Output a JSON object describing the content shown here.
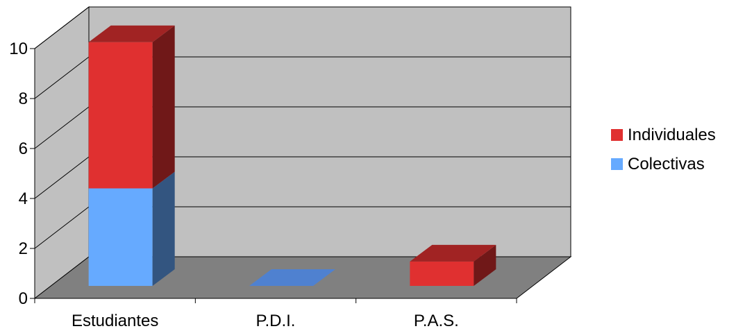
{
  "chart_data": {
    "type": "bar",
    "stacked": true,
    "three_d": true,
    "categories": [
      "Estudiantes",
      "P.D.I.",
      "P.A.S."
    ],
    "series": [
      {
        "name": "Colectivas",
        "values": [
          4,
          0,
          0
        ],
        "color": "#66aaff"
      },
      {
        "name": "Individuales",
        "values": [
          6,
          0,
          1
        ],
        "color": "#e03030"
      }
    ],
    "ylim": [
      0,
      10
    ],
    "yticks": [
      0,
      2,
      4,
      6,
      8,
      10
    ],
    "grid": true,
    "legend": "right",
    "colors": {
      "wall": "#c0c0c0",
      "floor": "#808080",
      "gridline": "#000000",
      "empty_marker": "#4f81d0"
    }
  }
}
